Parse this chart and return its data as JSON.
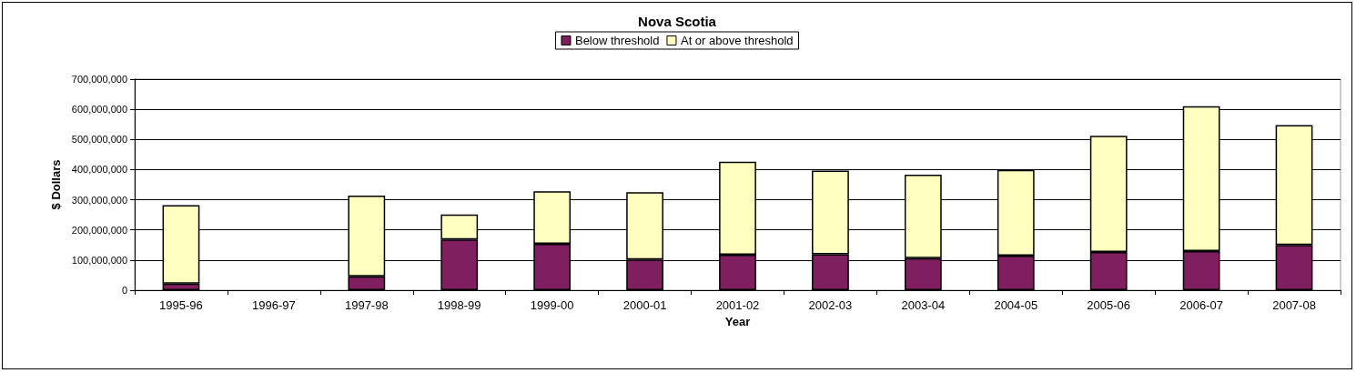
{
  "chart_data": {
    "type": "bar",
    "title": "Nova Scotia",
    "xlabel": "Year",
    "ylabel": "$ Dollars",
    "categories": [
      "1995-96",
      "1996-97",
      "1997-98",
      "1998-99",
      "1999-00",
      "2000-01",
      "2001-02",
      "2002-03",
      "2003-04",
      "2004-05",
      "2005-06",
      "2006-07",
      "2007-08"
    ],
    "series": [
      {
        "name": "Below threshold",
        "color": "#7f1f5f",
        "values": [
          22000000,
          null,
          46000000,
          168000000,
          154000000,
          102000000,
          118000000,
          119000000,
          106000000,
          115000000,
          127000000,
          130000000,
          150000000
        ]
      },
      {
        "name": "At or above threshold",
        "color": "#ffffc0",
        "values": [
          260000000,
          null,
          268000000,
          83000000,
          174000000,
          223000000,
          308000000,
          278000000,
          277000000,
          284000000,
          385000000,
          480000000,
          398000000
        ]
      }
    ],
    "stacked": true,
    "ylim": [
      0,
      700000000
    ],
    "yticks": [
      0,
      {
        "value": 100000000,
        "label": "100,000,000"
      },
      {
        "value": 200000000,
        "label": "200,000,000"
      },
      {
        "value": 300000000,
        "label": "300,000,000"
      },
      {
        "value": 400000000,
        "label": "400,000,000"
      },
      {
        "value": 500000000,
        "label": "500,000,000"
      },
      {
        "value": 600000000,
        "label": "600,000,000"
      },
      {
        "value": 700000000,
        "label": "700,000,000"
      }
    ],
    "grid": "y",
    "legend": "top"
  }
}
